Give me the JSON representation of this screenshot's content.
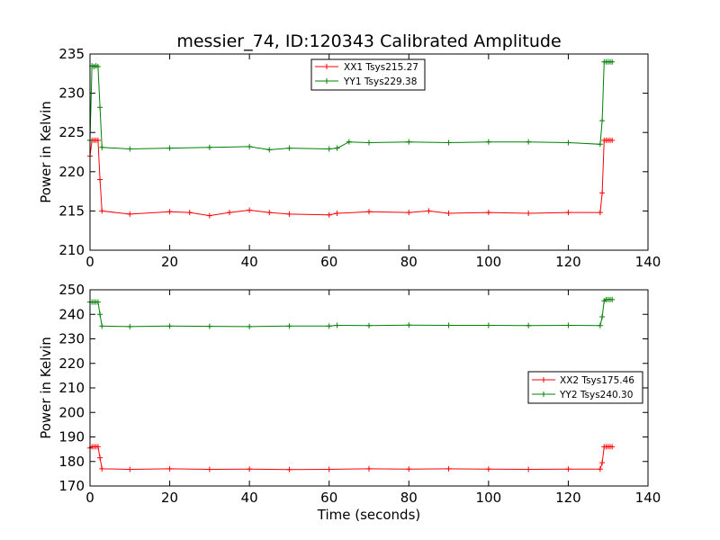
{
  "colors": {
    "xx": "#ff0000",
    "yy": "#008000"
  },
  "chart_data": [
    {
      "type": "line",
      "title": "messier_74, ID:120343 Calibrated Amplitude",
      "xlabel": "",
      "ylabel": "Power in Kelvin",
      "xlim": [
        0,
        140
      ],
      "ylim": [
        210,
        235
      ],
      "xticks": [
        0,
        20,
        40,
        60,
        80,
        100,
        120,
        140
      ],
      "yticks": [
        210,
        215,
        220,
        225,
        230,
        235
      ],
      "grid": false,
      "legend_position": "top-center",
      "marker": "plus",
      "series": [
        {
          "name": "XX1 Tsys215.27",
          "color": "#ff0000",
          "x": [
            0,
            0.5,
            1,
            1.5,
            2,
            2.5,
            3,
            10,
            20,
            25,
            30,
            35,
            40,
            45,
            50,
            60,
            62,
            70,
            80,
            85,
            90,
            100,
            110,
            120,
            128,
            128.5,
            129,
            129.5,
            130,
            130.5,
            131
          ],
          "values": [
            222,
            224,
            224,
            224,
            224,
            219,
            215,
            214.6,
            214.9,
            214.8,
            214.4,
            214.8,
            215.1,
            214.8,
            214.6,
            214.5,
            214.7,
            214.9,
            214.8,
            215.0,
            214.7,
            214.8,
            214.7,
            214.8,
            214.8,
            217.3,
            224,
            224,
            224,
            224,
            224
          ]
        },
        {
          "name": "YY1 Tsys229.38",
          "color": "#008000",
          "x": [
            0,
            0.5,
            1,
            1.5,
            2,
            2.5,
            3,
            10,
            20,
            30,
            40,
            45,
            50,
            60,
            62,
            65,
            70,
            80,
            90,
            100,
            110,
            120,
            128,
            128.5,
            129,
            129.5,
            130,
            130.5,
            131
          ],
          "values": [
            224,
            233.5,
            233.4,
            233.5,
            233.4,
            228.2,
            223.1,
            222.9,
            223.0,
            223.1,
            223.2,
            222.8,
            223.0,
            222.9,
            223.0,
            223.8,
            223.7,
            223.8,
            223.7,
            223.8,
            223.8,
            223.7,
            223.5,
            226.5,
            234,
            234,
            234,
            234,
            234
          ]
        }
      ]
    },
    {
      "type": "line",
      "title": "",
      "xlabel": "Time (seconds)",
      "ylabel": "Power in Kelvin",
      "xlim": [
        0,
        140
      ],
      "ylim": [
        170,
        250
      ],
      "xticks": [
        0,
        20,
        40,
        60,
        80,
        100,
        120,
        140
      ],
      "yticks": [
        170,
        180,
        190,
        200,
        210,
        220,
        230,
        240,
        250
      ],
      "grid": false,
      "legend_position": "center-right",
      "marker": "plus",
      "series": [
        {
          "name": "XX2 Tsys175.46",
          "color": "#ff0000",
          "x": [
            0,
            0.5,
            1,
            1.5,
            2,
            2.5,
            3,
            10,
            20,
            30,
            40,
            50,
            60,
            70,
            80,
            90,
            100,
            110,
            120,
            128,
            128.5,
            129,
            129.5,
            130,
            130.5,
            131
          ],
          "values": [
            185.5,
            186,
            186,
            186,
            186,
            181.5,
            177,
            176.8,
            177.0,
            176.8,
            176.9,
            176.7,
            176.8,
            177.0,
            176.9,
            177.0,
            176.9,
            176.8,
            176.9,
            176.9,
            179.5,
            186,
            186,
            186,
            186,
            186
          ]
        },
        {
          "name": "YY2 Tsys240.30",
          "color": "#008000",
          "x": [
            0,
            0.5,
            1,
            1.5,
            2,
            2.5,
            3,
            10,
            20,
            30,
            40,
            50,
            60,
            62,
            70,
            80,
            90,
            100,
            110,
            120,
            128,
            128.5,
            129,
            129.5,
            130,
            130.5,
            131
          ],
          "values": [
            245,
            245,
            245,
            245,
            245,
            240,
            235.2,
            235.0,
            235.2,
            235.1,
            235.0,
            235.2,
            235.2,
            235.5,
            235.4,
            235.6,
            235.5,
            235.5,
            235.4,
            235.5,
            235.4,
            239,
            245.5,
            246,
            246,
            246,
            246
          ]
        }
      ]
    }
  ]
}
